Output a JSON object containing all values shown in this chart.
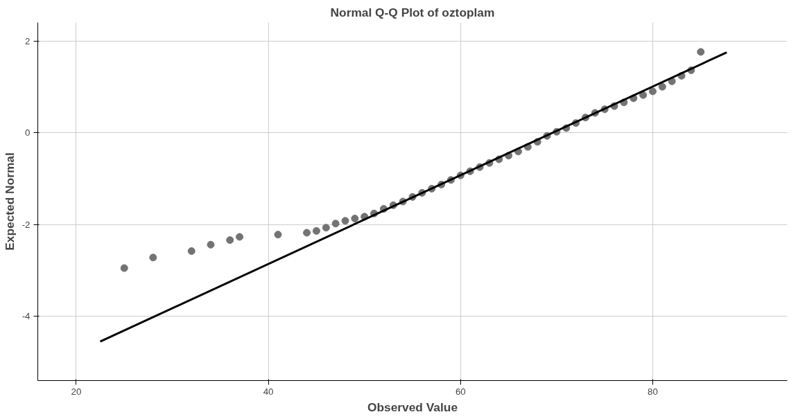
{
  "chart_data": {
    "type": "scatter",
    "title": "Normal Q-Q Plot of oztoplam",
    "xlabel": "Observed Value",
    "ylabel": "Expected Normal",
    "xlim": [
      16,
      94
    ],
    "ylim": [
      -5.4,
      2.4
    ],
    "xticks": [
      20,
      40,
      60,
      80
    ],
    "yticks": [
      -4,
      -2,
      0,
      2
    ],
    "grid": true,
    "series": [
      {
        "marker": "circle",
        "color": "#737373",
        "x": [
          25,
          28,
          32,
          34,
          36,
          37,
          41,
          44,
          45,
          46,
          47,
          48,
          49,
          50,
          51,
          52,
          53,
          54,
          55,
          56,
          57,
          58,
          59,
          60,
          61,
          62,
          63,
          64,
          65,
          66,
          67,
          68,
          69,
          70,
          71,
          72,
          73,
          74,
          75,
          76,
          77,
          78,
          79,
          80,
          81,
          82,
          83,
          84,
          85
        ],
        "values": [
          -2.95,
          -2.72,
          -2.58,
          -2.44,
          -2.34,
          -2.27,
          -2.22,
          -2.18,
          -2.14,
          -2.07,
          -1.98,
          -1.92,
          -1.87,
          -1.83,
          -1.76,
          -1.66,
          -1.58,
          -1.5,
          -1.4,
          -1.31,
          -1.22,
          -1.13,
          -1.03,
          -0.93,
          -0.84,
          -0.75,
          -0.66,
          -0.58,
          -0.5,
          -0.41,
          -0.31,
          -0.2,
          -0.07,
          0.02,
          0.1,
          0.21,
          0.33,
          0.43,
          0.51,
          0.58,
          0.66,
          0.75,
          0.82,
          0.9,
          1.0,
          1.12,
          1.24,
          1.36,
          1.76
        ]
      },
      {
        "type": "line",
        "color": "#000000",
        "x": [
          22.5,
          87.7
        ],
        "values": [
          -4.55,
          1.75
        ]
      }
    ]
  }
}
